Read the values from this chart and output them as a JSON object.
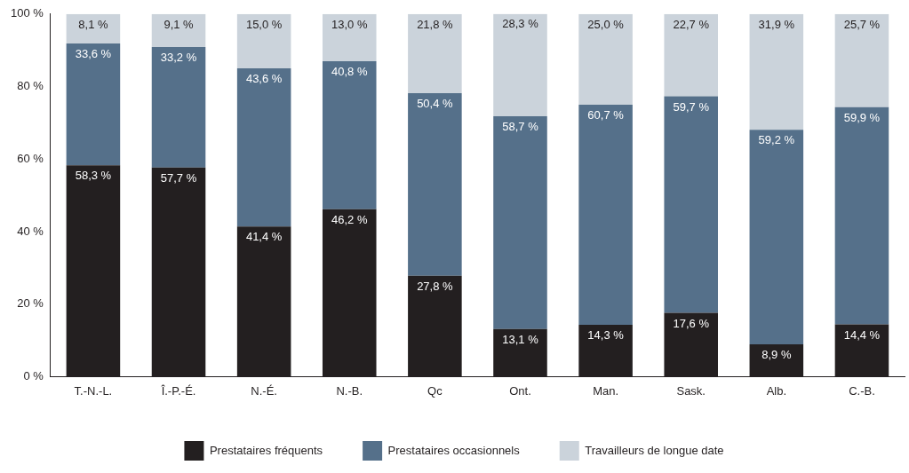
{
  "chart_data": {
    "type": "bar",
    "stacked": true,
    "categories": [
      "T.-N.-L.",
      "Î.-P.-É.",
      "N.-É.",
      "N.-B.",
      "Qc",
      "Ont.",
      "Man.",
      "Sask.",
      "Alb.",
      "C.-B."
    ],
    "ylim": [
      0,
      100
    ],
    "yticks": [
      {
        "value": 0,
        "label": "0 %"
      },
      {
        "value": 20,
        "label": "20 %"
      },
      {
        "value": 40,
        "label": "40 %"
      },
      {
        "value": 60,
        "label": "60 %"
      },
      {
        "value": 80,
        "label": "80 %"
      },
      {
        "value": 100,
        "label": "100 %"
      }
    ],
    "grid": false,
    "legend": "bottom",
    "series": [
      {
        "name": "Prestataires fréquents",
        "color": "#231f20",
        "values": [
          58.3,
          57.7,
          41.4,
          46.2,
          27.8,
          13.1,
          14.3,
          17.6,
          8.9,
          14.4
        ],
        "value_labels": [
          "58,3 %",
          "57,7 %",
          "41,4 %",
          "46,2 %",
          "27,8 %",
          "13,1 %",
          "14,3 %",
          "17,6 %",
          "8,9 %",
          "14,4 %"
        ]
      },
      {
        "name": "Prestataires occasionnels",
        "color": "#55708a",
        "values": [
          33.6,
          33.2,
          43.6,
          40.8,
          50.4,
          58.7,
          60.7,
          59.7,
          59.2,
          59.9
        ],
        "value_labels": [
          "33,6 %",
          "33,2 %",
          "43,6 %",
          "40,8 %",
          "50,4 %",
          "58,7 %",
          "60,7 %",
          "59,7 %",
          "59,2 %",
          "59,9 %"
        ]
      },
      {
        "name": "Travailleurs de longue date",
        "color": "#cbd3db",
        "values": [
          8.1,
          9.1,
          15.0,
          13.0,
          21.8,
          28.3,
          25.0,
          22.7,
          31.9,
          25.7
        ],
        "value_labels": [
          "8,1 %",
          "9,1 %",
          "15,0 %",
          "13,0 %",
          "21,8 %",
          "28,3 %",
          "25,0 %",
          "22,7 %",
          "31,9 %",
          "25,7 %"
        ]
      }
    ]
  }
}
